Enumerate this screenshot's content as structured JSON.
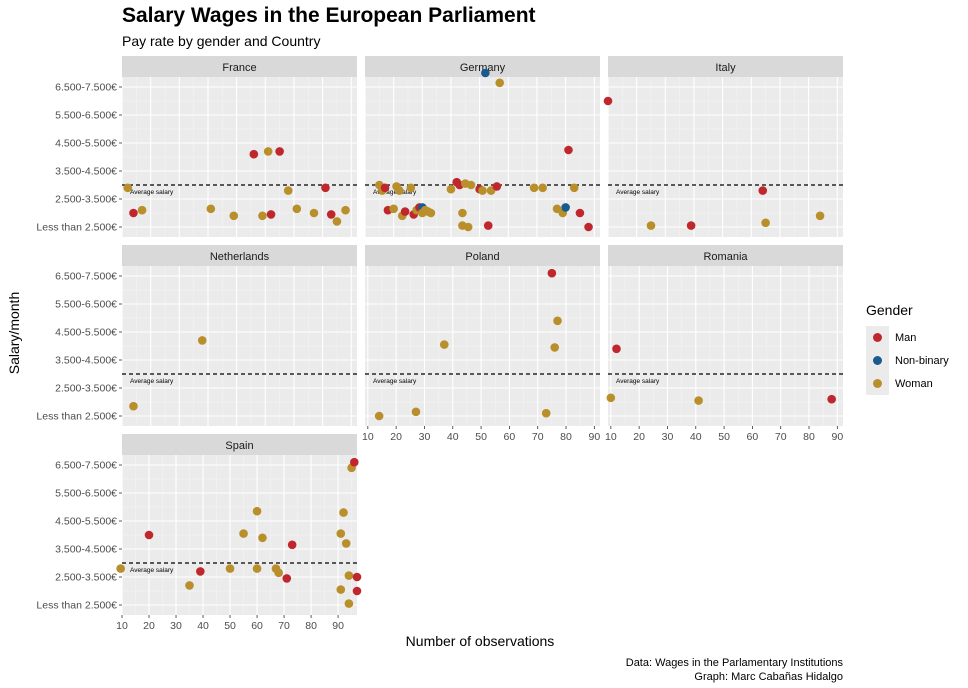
{
  "chart_data": {
    "type": "scatter",
    "title": "Salary Wages in the European Parliament",
    "subtitle": "Pay rate by gender and Country",
    "xlabel": "Number of observations",
    "ylabel": "Salary/month",
    "caption": [
      "Data: Wages in the Parlamentary Institutions",
      "Graph: Marc Cabañas Hidalgo"
    ],
    "y_categories": [
      "Less than 2.500€",
      "2.500-3.500€",
      "3.500-4.500€",
      "4.500-5.500€",
      "5.500-6.500€",
      "6.500-7.500€"
    ],
    "average_salary_label": "Average salary",
    "average_salary_level": 1.5,
    "legend": {
      "title": "Gender",
      "placement": "right",
      "entries": [
        {
          "name": "Man",
          "color": "#c0272d"
        },
        {
          "name": "Non-binary",
          "color": "#1a5b8f"
        },
        {
          "name": "Woman",
          "color": "#b88f2a"
        }
      ]
    },
    "facets": [
      {
        "name": "France",
        "xlim": [
          10,
          92
        ],
        "xticks": [],
        "points": [
          {
            "x": 12,
            "y": 1.4,
            "g": "Woman"
          },
          {
            "x": 14,
            "y": 0.5,
            "g": "Man"
          },
          {
            "x": 17,
            "y": 0.6,
            "g": "Woman"
          },
          {
            "x": 41,
            "y": 0.65,
            "g": "Woman"
          },
          {
            "x": 49,
            "y": 0.4,
            "g": "Woman"
          },
          {
            "x": 56,
            "y": 2.6,
            "g": "Man"
          },
          {
            "x": 59,
            "y": 0.4,
            "g": "Woman"
          },
          {
            "x": 61,
            "y": 2.7,
            "g": "Woman"
          },
          {
            "x": 62,
            "y": 0.45,
            "g": "Man"
          },
          {
            "x": 65,
            "y": 2.7,
            "g": "Man"
          },
          {
            "x": 68,
            "y": 1.3,
            "g": "Woman"
          },
          {
            "x": 71,
            "y": 0.65,
            "g": "Woman"
          },
          {
            "x": 77,
            "y": 0.5,
            "g": "Woman"
          },
          {
            "x": 81,
            "y": 1.4,
            "g": "Man"
          },
          {
            "x": 83,
            "y": 0.45,
            "g": "Man"
          },
          {
            "x": 85,
            "y": 0.2,
            "g": "Woman"
          },
          {
            "x": 88,
            "y": 0.6,
            "g": "Woman"
          }
        ]
      },
      {
        "name": "Germany",
        "xlim": [
          10,
          92
        ],
        "xticks": [],
        "points": [
          {
            "x": 15,
            "y": 1.5,
            "g": "Woman"
          },
          {
            "x": 16,
            "y": 1.3,
            "g": "Woman"
          },
          {
            "x": 17,
            "y": 1.4,
            "g": "Man"
          },
          {
            "x": 18,
            "y": 0.6,
            "g": "Man"
          },
          {
            "x": 20,
            "y": 0.65,
            "g": "Woman"
          },
          {
            "x": 21,
            "y": 1.45,
            "g": "Woman"
          },
          {
            "x": 22,
            "y": 1.3,
            "g": "Woman"
          },
          {
            "x": 23,
            "y": 0.4,
            "g": "Woman"
          },
          {
            "x": 24,
            "y": 0.55,
            "g": "Man"
          },
          {
            "x": 26,
            "y": 1.4,
            "g": "Woman"
          },
          {
            "x": 27,
            "y": 0.45,
            "g": "Man"
          },
          {
            "x": 28,
            "y": 0.6,
            "g": "Woman"
          },
          {
            "x": 29,
            "y": 0.7,
            "g": "Man"
          },
          {
            "x": 30,
            "y": 0.7,
            "g": "Non-binary"
          },
          {
            "x": 30,
            "y": 0.5,
            "g": "Woman"
          },
          {
            "x": 31,
            "y": 0.6,
            "g": "Woman"
          },
          {
            "x": 32,
            "y": 0.55,
            "g": "Woman"
          },
          {
            "x": 33,
            "y": 0.5,
            "g": "Woman"
          },
          {
            "x": 40,
            "y": 1.35,
            "g": "Woman"
          },
          {
            "x": 42,
            "y": 1.6,
            "g": "Man"
          },
          {
            "x": 43,
            "y": 1.5,
            "g": "Man"
          },
          {
            "x": 44,
            "y": 0.05,
            "g": "Woman"
          },
          {
            "x": 44,
            "y": 0.5,
            "g": "Woman"
          },
          {
            "x": 45,
            "y": 1.55,
            "g": "Woman"
          },
          {
            "x": 46,
            "y": 0.0,
            "g": "Woman"
          },
          {
            "x": 47,
            "y": 1.5,
            "g": "Woman"
          },
          {
            "x": 50,
            "y": 1.35,
            "g": "Man"
          },
          {
            "x": 51,
            "y": 1.3,
            "g": "Woman"
          },
          {
            "x": 52,
            "y": 5.5,
            "g": "Non-binary"
          },
          {
            "x": 53,
            "y": 0.05,
            "g": "Man"
          },
          {
            "x": 54,
            "y": 1.3,
            "g": "Woman"
          },
          {
            "x": 56,
            "y": 1.45,
            "g": "Man"
          },
          {
            "x": 57,
            "y": 5.15,
            "g": "Woman"
          },
          {
            "x": 69,
            "y": 1.4,
            "g": "Woman"
          },
          {
            "x": 72,
            "y": 1.4,
            "g": "Woman"
          },
          {
            "x": 77,
            "y": 0.65,
            "g": "Woman"
          },
          {
            "x": 79,
            "y": 0.5,
            "g": "Woman"
          },
          {
            "x": 80,
            "y": 0.7,
            "g": "Non-binary"
          },
          {
            "x": 81,
            "y": 2.75,
            "g": "Man"
          },
          {
            "x": 83,
            "y": 1.4,
            "g": "Woman"
          },
          {
            "x": 85,
            "y": 0.5,
            "g": "Man"
          },
          {
            "x": 88,
            "y": 0.0,
            "g": "Man"
          }
        ]
      },
      {
        "name": "Italy",
        "xlim": [
          10,
          92
        ],
        "xticks": [],
        "points": [
          {
            "x": 10,
            "y": 4.5,
            "g": "Man"
          },
          {
            "x": 25,
            "y": 0.05,
            "g": "Woman"
          },
          {
            "x": 39,
            "y": 0.05,
            "g": "Man"
          },
          {
            "x": 64,
            "y": 1.3,
            "g": "Man"
          },
          {
            "x": 65,
            "y": 0.15,
            "g": "Woman"
          },
          {
            "x": 84,
            "y": 0.4,
            "g": "Woman"
          }
        ]
      },
      {
        "name": "Netherlands",
        "xlim": [
          10,
          92
        ],
        "xticks": [],
        "points": [
          {
            "x": 14,
            "y": 0.35,
            "g": "Woman"
          },
          {
            "x": 38,
            "y": 2.7,
            "g": "Woman"
          }
        ]
      },
      {
        "name": "Poland",
        "xlim": [
          9,
          92
        ],
        "xticks": [
          10,
          20,
          30,
          40,
          50,
          60,
          70,
          80,
          90
        ],
        "points": [
          {
            "x": 14,
            "y": 0.0,
            "g": "Woman"
          },
          {
            "x": 27,
            "y": 0.15,
            "g": "Woman"
          },
          {
            "x": 37,
            "y": 2.55,
            "g": "Woman"
          },
          {
            "x": 73,
            "y": 0.1,
            "g": "Woman"
          },
          {
            "x": 75,
            "y": 5.1,
            "g": "Man"
          },
          {
            "x": 76,
            "y": 2.45,
            "g": "Woman"
          },
          {
            "x": 77,
            "y": 3.4,
            "g": "Woman"
          }
        ]
      },
      {
        "name": "Romania",
        "xlim": [
          9,
          92
        ],
        "xticks": [
          10,
          20,
          30,
          40,
          50,
          60,
          70,
          80,
          90
        ],
        "points": [
          {
            "x": 10,
            "y": 0.65,
            "g": "Woman"
          },
          {
            "x": 12,
            "y": 2.4,
            "g": "Man"
          },
          {
            "x": 41,
            "y": 0.55,
            "g": "Woman"
          },
          {
            "x": 88,
            "y": 0.6,
            "g": "Man"
          }
        ]
      },
      {
        "name": "Spain",
        "xlim": [
          10,
          97
        ],
        "xticks": [
          10,
          20,
          30,
          40,
          50,
          60,
          70,
          80,
          90
        ],
        "points": [
          {
            "x": 9.5,
            "y": 1.3,
            "g": "Woman"
          },
          {
            "x": 20,
            "y": 2.5,
            "g": "Man"
          },
          {
            "x": 35,
            "y": 0.7,
            "g": "Woman"
          },
          {
            "x": 39,
            "y": 1.2,
            "g": "Man"
          },
          {
            "x": 50,
            "y": 1.3,
            "g": "Woman"
          },
          {
            "x": 55,
            "y": 2.55,
            "g": "Woman"
          },
          {
            "x": 60,
            "y": 3.35,
            "g": "Woman"
          },
          {
            "x": 60,
            "y": 1.3,
            "g": "Woman"
          },
          {
            "x": 62,
            "y": 2.4,
            "g": "Woman"
          },
          {
            "x": 67,
            "y": 1.3,
            "g": "Woman"
          },
          {
            "x": 68,
            "y": 1.15,
            "g": "Woman"
          },
          {
            "x": 71,
            "y": 0.95,
            "g": "Man"
          },
          {
            "x": 73,
            "y": 2.15,
            "g": "Man"
          },
          {
            "x": 91,
            "y": 0.55,
            "g": "Woman"
          },
          {
            "x": 91,
            "y": 2.55,
            "g": "Woman"
          },
          {
            "x": 92,
            "y": 3.3,
            "g": "Woman"
          },
          {
            "x": 93,
            "y": 2.2,
            "g": "Woman"
          },
          {
            "x": 94,
            "y": 0.05,
            "g": "Woman"
          },
          {
            "x": 94,
            "y": 1.05,
            "g": "Woman"
          },
          {
            "x": 95,
            "y": 4.9,
            "g": "Woman"
          },
          {
            "x": 96,
            "y": 5.1,
            "g": "Man"
          },
          {
            "x": 97,
            "y": 1.0,
            "g": "Man"
          },
          {
            "x": 97,
            "y": 0.5,
            "g": "Man"
          }
        ]
      }
    ]
  }
}
